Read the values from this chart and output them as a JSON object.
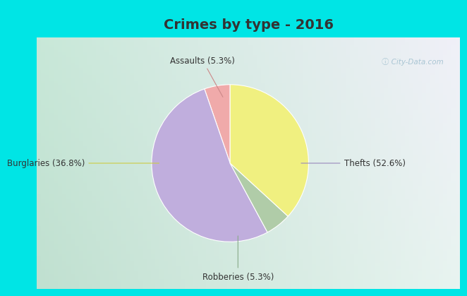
{
  "title": "Crimes by type - 2016",
  "labels": [
    "Assaults (5.3%)",
    "Thefts (52.6%)",
    "Robberies (5.3%)",
    "Burglaries (36.8%)"
  ],
  "values": [
    5.3,
    52.6,
    5.3,
    36.8
  ],
  "colors": [
    "#f0aaaa",
    "#c0aedd",
    "#b0cca8",
    "#f0f080"
  ],
  "title_fontsize": 14,
  "label_fontsize": 8.5,
  "startangle": 90,
  "title_color": "#333333",
  "label_color": "#333333",
  "watermark_text": "ⓘ City-Data.com",
  "bg_color_top": "#00e5e5",
  "bg_color_chart": "#e8f5f0"
}
